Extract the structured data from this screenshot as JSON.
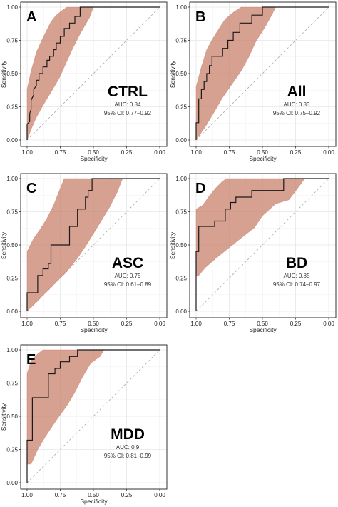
{
  "chart_data": [
    {
      "type": "line",
      "panel": "A",
      "group": "CTRL",
      "auc_text": "AUC: 0.84",
      "ci_text": "95% CI: 0.77–0.92",
      "xlabel": "Specificity",
      "ylabel": "Sensitivity",
      "xlim": [
        1.0,
        0.0
      ],
      "ylim": [
        0.0,
        1.0
      ],
      "x_ticks": [
        "1.00",
        "0.75",
        "0.50",
        "0.25",
        "0.00"
      ],
      "y_ticks": [
        "0.00",
        "0.25",
        "0.50",
        "0.75",
        "1.00"
      ],
      "grid": true,
      "roc": [
        [
          1.0,
          0.0
        ],
        [
          1.0,
          0.12
        ],
        [
          0.98,
          0.14
        ],
        [
          0.98,
          0.2
        ],
        [
          0.97,
          0.23
        ],
        [
          0.97,
          0.3
        ],
        [
          0.95,
          0.34
        ],
        [
          0.95,
          0.38
        ],
        [
          0.93,
          0.41
        ],
        [
          0.93,
          0.45
        ],
        [
          0.91,
          0.45
        ],
        [
          0.91,
          0.5
        ],
        [
          0.88,
          0.5
        ],
        [
          0.88,
          0.55
        ],
        [
          0.85,
          0.55
        ],
        [
          0.85,
          0.6
        ],
        [
          0.83,
          0.6
        ],
        [
          0.83,
          0.63
        ],
        [
          0.8,
          0.63
        ],
        [
          0.8,
          0.68
        ],
        [
          0.78,
          0.68
        ],
        [
          0.78,
          0.73
        ],
        [
          0.75,
          0.73
        ],
        [
          0.75,
          0.78
        ],
        [
          0.72,
          0.78
        ],
        [
          0.72,
          0.84
        ],
        [
          0.68,
          0.84
        ],
        [
          0.68,
          0.88
        ],
        [
          0.64,
          0.88
        ],
        [
          0.64,
          0.93
        ],
        [
          0.6,
          0.93
        ],
        [
          0.6,
          1.0
        ],
        [
          0.0,
          1.0
        ]
      ],
      "ci_upper": [
        [
          1.0,
          0.0
        ],
        [
          1.0,
          0.38
        ],
        [
          0.97,
          0.52
        ],
        [
          0.93,
          0.66
        ],
        [
          0.89,
          0.75
        ],
        [
          0.85,
          0.83
        ],
        [
          0.82,
          0.89
        ],
        [
          0.78,
          0.94
        ],
        [
          0.73,
          0.98
        ],
        [
          0.7,
          1.0
        ],
        [
          0.0,
          1.0
        ]
      ],
      "ci_lower": [
        [
          0.0,
          1.0
        ],
        [
          0.5,
          1.0
        ],
        [
          0.53,
          0.92
        ],
        [
          0.6,
          0.8
        ],
        [
          0.66,
          0.68
        ],
        [
          0.71,
          0.57
        ],
        [
          0.76,
          0.46
        ],
        [
          0.82,
          0.36
        ],
        [
          0.88,
          0.26
        ],
        [
          0.93,
          0.17
        ],
        [
          0.97,
          0.08
        ],
        [
          1.0,
          0.0
        ]
      ]
    },
    {
      "type": "line",
      "panel": "B",
      "group": "All",
      "auc_text": "AUC: 0.83",
      "ci_text": "95% CI: 0.75–0.92",
      "xlabel": "Specificity",
      "ylabel": "Sensitivity",
      "xlim": [
        1.0,
        0.0
      ],
      "ylim": [
        0.0,
        1.0
      ],
      "x_ticks": [
        "1.00",
        "0.75",
        "0.50",
        "0.25",
        "0.00"
      ],
      "y_ticks": [
        "0.00",
        "0.25",
        "0.50",
        "0.75",
        "1.00"
      ],
      "grid": true,
      "roc": [
        [
          1.0,
          0.0
        ],
        [
          1.0,
          0.13
        ],
        [
          0.98,
          0.13
        ],
        [
          0.98,
          0.31
        ],
        [
          0.96,
          0.31
        ],
        [
          0.96,
          0.38
        ],
        [
          0.94,
          0.38
        ],
        [
          0.94,
          0.44
        ],
        [
          0.92,
          0.44
        ],
        [
          0.92,
          0.5
        ],
        [
          0.9,
          0.5
        ],
        [
          0.9,
          0.56
        ],
        [
          0.88,
          0.56
        ],
        [
          0.88,
          0.63
        ],
        [
          0.8,
          0.63
        ],
        [
          0.8,
          0.69
        ],
        [
          0.76,
          0.69
        ],
        [
          0.76,
          0.75
        ],
        [
          0.72,
          0.75
        ],
        [
          0.72,
          0.81
        ],
        [
          0.67,
          0.81
        ],
        [
          0.67,
          0.88
        ],
        [
          0.58,
          0.88
        ],
        [
          0.58,
          0.94
        ],
        [
          0.5,
          0.94
        ],
        [
          0.5,
          1.0
        ],
        [
          0.0,
          1.0
        ]
      ],
      "ci_upper": [
        [
          1.0,
          0.0
        ],
        [
          1.0,
          0.4
        ],
        [
          0.96,
          0.55
        ],
        [
          0.92,
          0.68
        ],
        [
          0.87,
          0.77
        ],
        [
          0.82,
          0.85
        ],
        [
          0.78,
          0.91
        ],
        [
          0.72,
          0.96
        ],
        [
          0.66,
          1.0
        ],
        [
          0.0,
          1.0
        ]
      ],
      "ci_lower": [
        [
          0.0,
          1.0
        ],
        [
          0.4,
          1.0
        ],
        [
          0.43,
          0.94
        ],
        [
          0.48,
          0.85
        ],
        [
          0.55,
          0.74
        ],
        [
          0.6,
          0.63
        ],
        [
          0.66,
          0.52
        ],
        [
          0.73,
          0.42
        ],
        [
          0.8,
          0.32
        ],
        [
          0.87,
          0.2
        ],
        [
          0.93,
          0.1
        ],
        [
          1.0,
          0.0
        ]
      ]
    },
    {
      "type": "line",
      "panel": "C",
      "group": "ASC",
      "auc_text": "AUC: 0.75",
      "ci_text": "95% CI: 0.61–0.89",
      "xlabel": "Specificity",
      "ylabel": "Sensitivity",
      "xlim": [
        1.0,
        0.0
      ],
      "ylim": [
        0.0,
        1.0
      ],
      "x_ticks": [
        "1.00",
        "0.75",
        "0.50",
        "0.25",
        "0.00"
      ],
      "y_ticks": [
        "0.00",
        "0.25",
        "0.50",
        "0.75",
        "1.00"
      ],
      "grid": true,
      "roc": [
        [
          1.0,
          0.0
        ],
        [
          1.0,
          0.14
        ],
        [
          0.92,
          0.14
        ],
        [
          0.92,
          0.27
        ],
        [
          0.88,
          0.27
        ],
        [
          0.88,
          0.32
        ],
        [
          0.84,
          0.32
        ],
        [
          0.84,
          0.36
        ],
        [
          0.82,
          0.36
        ],
        [
          0.82,
          0.5
        ],
        [
          0.68,
          0.5
        ],
        [
          0.68,
          0.64
        ],
        [
          0.62,
          0.64
        ],
        [
          0.62,
          0.77
        ],
        [
          0.56,
          0.77
        ],
        [
          0.56,
          0.86
        ],
        [
          0.54,
          0.86
        ],
        [
          0.54,
          0.91
        ],
        [
          0.51,
          0.91
        ],
        [
          0.51,
          1.0
        ],
        [
          0.0,
          1.0
        ]
      ],
      "ci_upper": [
        [
          1.0,
          0.0
        ],
        [
          1.0,
          0.45
        ],
        [
          0.95,
          0.55
        ],
        [
          0.9,
          0.62
        ],
        [
          0.85,
          0.7
        ],
        [
          0.8,
          0.8
        ],
        [
          0.76,
          0.9
        ],
        [
          0.72,
          1.0
        ],
        [
          0.0,
          1.0
        ]
      ],
      "ci_lower": [
        [
          0.0,
          1.0
        ],
        [
          0.28,
          1.0
        ],
        [
          0.32,
          0.9
        ],
        [
          0.38,
          0.78
        ],
        [
          0.46,
          0.65
        ],
        [
          0.54,
          0.52
        ],
        [
          0.62,
          0.4
        ],
        [
          0.7,
          0.3
        ],
        [
          0.8,
          0.2
        ],
        [
          0.88,
          0.12
        ],
        [
          0.95,
          0.05
        ],
        [
          1.0,
          0.0
        ]
      ]
    },
    {
      "type": "line",
      "panel": "D",
      "group": "BD",
      "auc_text": "AUC: 0.85",
      "ci_text": "95% CI: 0.74–0.97",
      "xlabel": "Specificity",
      "ylabel": "Sensitivity",
      "xlim": [
        1.0,
        0.0
      ],
      "ylim": [
        0.0,
        1.0
      ],
      "x_ticks": [
        "1.00",
        "0.75",
        "0.50",
        "0.25",
        "0.00"
      ],
      "y_ticks": [
        "0.00",
        "0.25",
        "0.50",
        "0.75",
        "1.00"
      ],
      "grid": true,
      "roc": [
        [
          1.0,
          0.0
        ],
        [
          1.0,
          0.45
        ],
        [
          0.98,
          0.45
        ],
        [
          0.98,
          0.64
        ],
        [
          0.86,
          0.64
        ],
        [
          0.86,
          0.68
        ],
        [
          0.78,
          0.68
        ],
        [
          0.78,
          0.77
        ],
        [
          0.74,
          0.77
        ],
        [
          0.74,
          0.82
        ],
        [
          0.7,
          0.82
        ],
        [
          0.7,
          0.86
        ],
        [
          0.58,
          0.86
        ],
        [
          0.58,
          0.91
        ],
        [
          0.34,
          0.91
        ],
        [
          0.34,
          1.0
        ],
        [
          0.0,
          1.0
        ]
      ],
      "ci_upper": [
        [
          1.0,
          0.0
        ],
        [
          1.0,
          0.77
        ],
        [
          0.95,
          0.8
        ],
        [
          0.9,
          0.87
        ],
        [
          0.85,
          0.93
        ],
        [
          0.8,
          0.98
        ],
        [
          0.77,
          1.0
        ],
        [
          0.0,
          1.0
        ]
      ],
      "ci_lower": [
        [
          0.0,
          1.0
        ],
        [
          0.18,
          1.0
        ],
        [
          0.24,
          0.92
        ],
        [
          0.3,
          0.84
        ],
        [
          0.4,
          0.81
        ],
        [
          0.5,
          0.72
        ],
        [
          0.56,
          0.63
        ],
        [
          0.65,
          0.56
        ],
        [
          0.75,
          0.48
        ],
        [
          0.85,
          0.4
        ],
        [
          0.93,
          0.33
        ],
        [
          0.98,
          0.27
        ],
        [
          1.0,
          0.27
        ],
        [
          1.0,
          0.0
        ]
      ]
    },
    {
      "type": "line",
      "panel": "E",
      "group": "MDD",
      "auc_text": "AUC: 0.9",
      "ci_text": "95% CI: 0.81–0.99",
      "xlabel": "Specificity",
      "ylabel": "Sensitivity",
      "xlim": [
        1.0,
        0.0
      ],
      "ylim": [
        0.0,
        1.0
      ],
      "x_ticks": [
        "1.00",
        "0.75",
        "0.50",
        "0.25",
        "0.00"
      ],
      "y_ticks": [
        "0.00",
        "0.25",
        "0.50",
        "0.75",
        "1.00"
      ],
      "grid": true,
      "roc": [
        [
          1.0,
          0.0
        ],
        [
          1.0,
          0.32
        ],
        [
          0.96,
          0.32
        ],
        [
          0.96,
          0.64
        ],
        [
          0.84,
          0.64
        ],
        [
          0.84,
          0.82
        ],
        [
          0.79,
          0.82
        ],
        [
          0.79,
          0.86
        ],
        [
          0.75,
          0.86
        ],
        [
          0.75,
          0.91
        ],
        [
          0.68,
          0.91
        ],
        [
          0.68,
          0.95
        ],
        [
          0.62,
          0.95
        ],
        [
          0.62,
          1.0
        ],
        [
          0.0,
          1.0
        ]
      ],
      "ci_upper": [
        [
          1.0,
          0.0
        ],
        [
          1.0,
          0.82
        ],
        [
          0.97,
          0.92
        ],
        [
          0.92,
          0.97
        ],
        [
          0.88,
          1.0
        ],
        [
          0.0,
          1.0
        ]
      ],
      "ci_lower": [
        [
          0.0,
          1.0
        ],
        [
          0.42,
          1.0
        ],
        [
          0.45,
          0.95
        ],
        [
          0.52,
          0.9
        ],
        [
          0.58,
          0.8
        ],
        [
          0.64,
          0.68
        ],
        [
          0.7,
          0.58
        ],
        [
          0.78,
          0.47
        ],
        [
          0.86,
          0.35
        ],
        [
          0.92,
          0.25
        ],
        [
          0.97,
          0.14
        ],
        [
          1.0,
          0.14
        ],
        [
          1.0,
          0.0
        ]
      ]
    }
  ]
}
